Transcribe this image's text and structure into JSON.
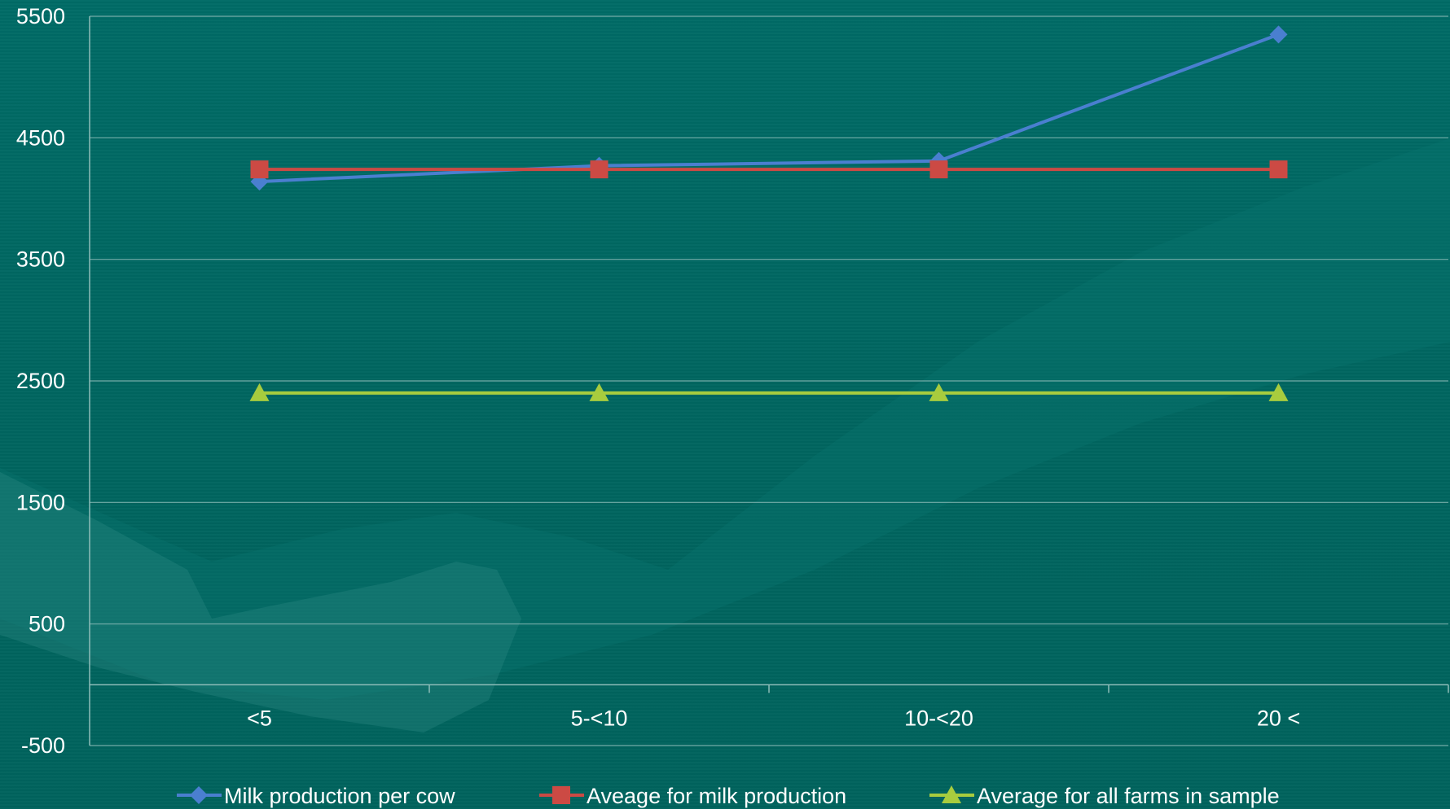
{
  "chart_data": {
    "type": "line",
    "categories": [
      "<5",
      "5-<10",
      "10-<20",
      "20 <"
    ],
    "yticks": [
      "5500",
      "4500",
      "3500",
      "2500",
      "1500",
      "500",
      "-500"
    ],
    "ylim": [
      -500,
      5500
    ],
    "grid": true,
    "legend_position": "bottom",
    "series": [
      {
        "name": "Milk production per cow",
        "values": [
          4140,
          4270,
          4310,
          5350
        ],
        "color": "#4a7fd0",
        "marker": "diamond"
      },
      {
        "name": "Aveage for milk production",
        "values": [
          4240,
          4240,
          4240,
          4240
        ],
        "color": "#cc4a44",
        "marker": "square"
      },
      {
        "name": "Average for all farms in sample",
        "values": [
          2400,
          2400,
          2400,
          2400
        ],
        "color": "#a8cc3e",
        "marker": "triangle"
      }
    ]
  }
}
